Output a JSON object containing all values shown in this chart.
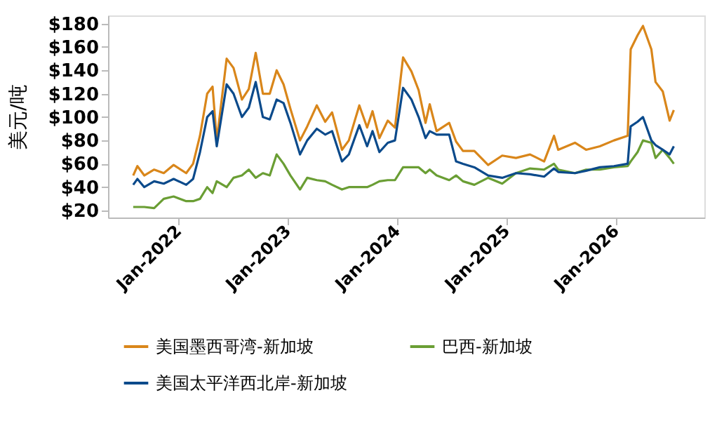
{
  "chart_data": {
    "type": "line",
    "ylabel": "美元/吨",
    "x": [
      "2021-08-05",
      "2021-08-19",
      "2021-09-11",
      "2021-10-14",
      "2021-11-15",
      "2021-12-18",
      "2022-01-29",
      "2022-02-21",
      "2022-03-16",
      "2022-04-09",
      "2022-04-27",
      "2022-05-11",
      "2022-06-13",
      "2022-07-06",
      "2022-08-03",
      "2022-08-26",
      "2022-09-18",
      "2022-10-12",
      "2022-11-04",
      "2022-11-27",
      "2022-12-20",
      "2023-01-12",
      "2023-02-13",
      "2023-03-09",
      "2023-04-10",
      "2023-05-08",
      "2023-05-31",
      "2023-07-03",
      "2023-07-26",
      "2023-08-30",
      "2023-09-25",
      "2023-10-13",
      "2023-11-05",
      "2023-12-03",
      "2023-12-27",
      "2024-01-23",
      "2024-02-20",
      "2024-03-15",
      "2024-04-07",
      "2024-04-21",
      "2024-05-14",
      "2024-06-25",
      "2024-07-18",
      "2024-08-10",
      "2024-09-17",
      "2024-11-02",
      "2024-12-19",
      "2025-02-03",
      "2025-03-22",
      "2025-05-08",
      "2025-06-10",
      "2025-06-24",
      "2025-08-19",
      "2025-09-25",
      "2025-11-10",
      "2025-12-27",
      "2026-02-11",
      "2026-02-21",
      "2026-03-16",
      "2026-04-03",
      "2026-05-01",
      "2026-05-15",
      "2026-06-08",
      "2026-07-01",
      "2026-07-15"
    ],
    "series": [
      {
        "name": "美国墨西哥湾-新加坡",
        "color": "#d9861a",
        "values": [
          50,
          58,
          50,
          55,
          52,
          59,
          52,
          60,
          84,
          120,
          126,
          80,
          150,
          142,
          115,
          124,
          155,
          120,
          120,
          140,
          128,
          107,
          80,
          92,
          110,
          96,
          104,
          72,
          80,
          110,
          91,
          105,
          82,
          97,
          91,
          151,
          139,
          123,
          95,
          111,
          88,
          95,
          79,
          71,
          71,
          59,
          67,
          65,
          68,
          62,
          84,
          72,
          78,
          72,
          75,
          80,
          84,
          158,
          170,
          178,
          158,
          130,
          122,
          97,
          106
        ]
      },
      {
        "name": "巴西-新加坡",
        "color": "#6a9e34",
        "values": [
          23,
          23,
          23,
          22,
          30,
          32,
          28,
          28,
          30,
          40,
          35,
          45,
          40,
          48,
          50,
          55,
          48,
          52,
          50,
          68,
          60,
          50,
          38,
          48,
          46,
          45,
          42,
          38,
          40,
          40,
          40,
          42,
          45,
          46,
          46,
          57,
          57,
          57,
          52,
          55,
          50,
          46,
          50,
          45,
          42,
          48,
          43,
          52,
          56,
          55,
          60,
          55,
          52,
          55,
          55,
          57,
          58,
          62,
          70,
          80,
          78,
          65,
          72,
          65,
          60
        ]
      },
      {
        "name": "美国太平洋西北岸-新加坡",
        "color": "#0b4a8b",
        "values": [
          42,
          47,
          40,
          45,
          43,
          47,
          42,
          47,
          70,
          100,
          105,
          75,
          128,
          120,
          100,
          108,
          130,
          100,
          98,
          115,
          112,
          95,
          68,
          80,
          90,
          85,
          88,
          62,
          68,
          93,
          75,
          88,
          70,
          78,
          80,
          125,
          115,
          100,
          82,
          88,
          85,
          85,
          62,
          60,
          57,
          50,
          48,
          52,
          51,
          49,
          56,
          53,
          52,
          54,
          57,
          58,
          60,
          92,
          96,
          100,
          80,
          76,
          72,
          68,
          75
        ]
      }
    ],
    "xlim": [
      "2021-05-13",
      "2026-10-25"
    ],
    "xticks": [
      {
        "value": "2022-01-01",
        "label": "Jan-2022"
      },
      {
        "value": "2023-01-01",
        "label": "Jan-2023"
      },
      {
        "value": "2024-01-01",
        "label": "Jan-2024"
      },
      {
        "value": "2025-01-01",
        "label": "Jan-2025"
      },
      {
        "value": "2026-01-01",
        "label": "Jan-2026"
      }
    ],
    "ylim": [
      14,
      187
    ],
    "yticks": [
      {
        "value": 20,
        "label": "$20"
      },
      {
        "value": 40,
        "label": "$40"
      },
      {
        "value": 60,
        "label": "$60"
      },
      {
        "value": 80,
        "label": "$80"
      },
      {
        "value": 100,
        "label": "$100"
      },
      {
        "value": 120,
        "label": "$120"
      },
      {
        "value": 140,
        "label": "$140"
      },
      {
        "value": 160,
        "label": "$160"
      },
      {
        "value": 180,
        "label": "$180"
      }
    ],
    "grid": false,
    "legend": "bottom",
    "marker": "none",
    "line_style": "solid"
  }
}
